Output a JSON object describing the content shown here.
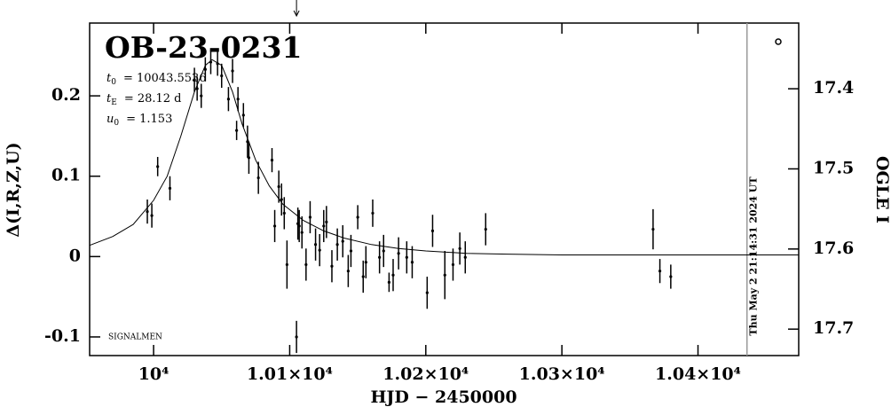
{
  "chart_data": {
    "type": "scatter",
    "title": "OB-23-0231",
    "params": [
      {
        "symbol": "t",
        "sub": "0",
        "text": "= 10043.5536"
      },
      {
        "symbol": "t",
        "sub": "E",
        "text": "= 28.12 d"
      },
      {
        "symbol": "u",
        "sub": "0",
        "text": "= 1.153"
      }
    ],
    "credit": "SIGNALMEN",
    "timestamp": "Thu May  2 21:14:31 2024 UT",
    "x_label": "HJD − 2450000",
    "y_label": "Δ(I,R,Z,U)",
    "y2_label": "OGLE I",
    "xlim": [
      9953,
      10474
    ],
    "xticks": [
      {
        "value": 10000,
        "label": "10⁴"
      },
      {
        "value": 10100,
        "label": "1.01×10⁴"
      },
      {
        "value": 10200,
        "label": "1.02×10⁴"
      },
      {
        "value": 10300,
        "label": "1.03×10⁴"
      },
      {
        "value": 10400,
        "label": "1.04×10⁴"
      }
    ],
    "ylim": [
      -0.1232,
      0.2906
    ],
    "yticks": [
      -0.1,
      0,
      0.1,
      0.2
    ],
    "y2lim": [
      17.733,
      17.318
    ],
    "y2ticks": [
      17.4,
      17.5,
      17.6,
      17.7
    ],
    "arrow_x": 10105,
    "now_x": 10436,
    "points": {
      "color": "#000000",
      "x": [
        9995.4,
        9998.7,
        10003,
        10012,
        10030,
        10032,
        10035,
        10038,
        10042,
        10047,
        10050,
        10055,
        10058,
        10062,
        10066,
        10061,
        10069,
        10070,
        10077,
        10087,
        10089,
        10092,
        10094,
        10096,
        10098,
        10106,
        10107,
        10109,
        10112,
        10115,
        10119,
        10122,
        10125,
        10127,
        10131,
        10135,
        10139,
        10143,
        10145,
        10150,
        10154,
        10156,
        10161,
        10166,
        10169,
        10173,
        10176,
        10180,
        10186,
        10190,
        10201,
        10205,
        10214,
        10220,
        10225,
        10229,
        10244,
        10367,
        10372,
        10380,
        10105
      ],
      "values": [
        0.056,
        0.051,
        0.112,
        0.085,
        0.22,
        0.209,
        0.2,
        0.233,
        0.242,
        0.24,
        0.225,
        0.196,
        0.231,
        0.196,
        0.176,
        0.157,
        0.143,
        0.123,
        0.098,
        0.12,
        0.038,
        0.087,
        0.071,
        0.054,
        -0.01,
        0.041,
        0.038,
        0.03,
        -0.01,
        0.049,
        0.015,
        0.008,
        0.038,
        0.043,
        -0.012,
        0.015,
        0.019,
        -0.018,
        0.007,
        0.049,
        -0.025,
        -0.007,
        0.054,
        -0.001,
        0.007,
        -0.032,
        -0.023,
        0.004,
        -0.001,
        -0.007,
        -0.045,
        0.032,
        -0.023,
        -0.01,
        0.01,
        -0.001,
        0.034,
        0.034,
        -0.018,
        -0.025,
        -0.1
      ],
      "errors": [
        0.015,
        0.015,
        0.012,
        0.015,
        0.015,
        0.015,
        0.015,
        0.015,
        0.015,
        0.015,
        0.015,
        0.015,
        0.015,
        0.015,
        0.015,
        0.012,
        0.02,
        0.02,
        0.02,
        0.015,
        0.02,
        0.02,
        0.02,
        0.02,
        0.03,
        0.02,
        0.02,
        0.02,
        0.02,
        0.02,
        0.02,
        0.02,
        0.02,
        0.02,
        0.02,
        0.02,
        0.02,
        0.02,
        0.02,
        0.015,
        0.02,
        0.02,
        0.017,
        0.02,
        0.02,
        0.012,
        0.02,
        0.02,
        0.02,
        0.02,
        0.02,
        0.02,
        0.03,
        0.02,
        0.02,
        0.02,
        0.02,
        0.025,
        0.015,
        0.015,
        0.02
      ]
    },
    "model": {
      "color": "#000000",
      "x": [
        9953,
        9970,
        9985,
        10000,
        10010,
        10020,
        10030,
        10038,
        10043,
        10050,
        10058,
        10065,
        10075,
        10085,
        10095,
        10110,
        10125,
        10140,
        10160,
        10180,
        10200,
        10230,
        10260,
        10300,
        10474
      ],
      "values": [
        0.014,
        0.025,
        0.04,
        0.07,
        0.1,
        0.15,
        0.205,
        0.238,
        0.245,
        0.238,
        0.205,
        0.165,
        0.12,
        0.088,
        0.065,
        0.045,
        0.032,
        0.023,
        0.015,
        0.01,
        0.007,
        0.004,
        0.003,
        0.002,
        0.002
      ]
    }
  }
}
